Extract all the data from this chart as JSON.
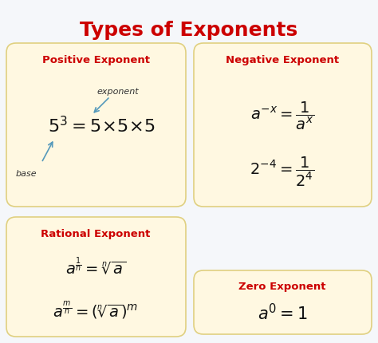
{
  "title": "Types of Exponents",
  "title_color": "#cc0000",
  "title_fontsize": 18,
  "bg_color": "#f5f7fa",
  "box_color": "#fff8e1",
  "box_edge_color": "#e0d080",
  "header_color": "#cc0000",
  "body_color": "#222222",
  "arrow_color": "#5599bb",
  "label_color": "#333333",
  "pos_header": "Positive Exponent",
  "neg_header": "Negative Exponent",
  "rat_header": "Rational Exponent",
  "zer_header": "Zero Exponent"
}
